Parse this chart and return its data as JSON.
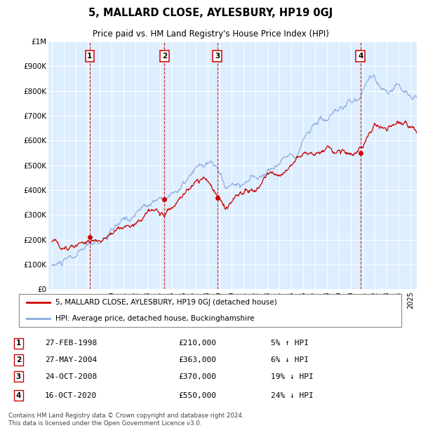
{
  "title": "5, MALLARD CLOSE, AYLESBURY, HP19 0GJ",
  "subtitle": "Price paid vs. HM Land Registry's House Price Index (HPI)",
  "ylabel_ticks": [
    "£0",
    "£100K",
    "£200K",
    "£300K",
    "£400K",
    "£500K",
    "£600K",
    "£700K",
    "£800K",
    "£900K",
    "£1M"
  ],
  "ytick_values": [
    0,
    100000,
    200000,
    300000,
    400000,
    500000,
    600000,
    700000,
    800000,
    900000,
    1000000
  ],
  "ylim": [
    0,
    1000000
  ],
  "xlim_start": 1994.7,
  "xlim_end": 2025.5,
  "background_color": "#ddeeff",
  "grid_color": "#ffffff",
  "sale_color": "#cc0000",
  "hpi_color": "#88aadd",
  "transactions": [
    {
      "num": 1,
      "date_x": 1998.15,
      "price": 210000
    },
    {
      "num": 2,
      "date_x": 2004.4,
      "price": 363000
    },
    {
      "num": 3,
      "date_x": 2008.81,
      "price": 370000
    },
    {
      "num": 4,
      "date_x": 2020.79,
      "price": 550000
    }
  ],
  "legend_sale_label": "5, MALLARD CLOSE, AYLESBURY, HP19 0GJ (detached house)",
  "legend_hpi_label": "HPI: Average price, detached house, Buckinghamshire",
  "footer": "Contains HM Land Registry data © Crown copyright and database right 2024.\nThis data is licensed under the Open Government Licence v3.0.",
  "table_rows": [
    [
      1,
      "27-FEB-1998",
      "£210,000",
      "5% ↑ HPI"
    ],
    [
      2,
      "27-MAY-2004",
      "£363,000",
      "6% ↓ HPI"
    ],
    [
      3,
      "24-OCT-2008",
      "£370,000",
      "19% ↓ HPI"
    ],
    [
      4,
      "16-OCT-2020",
      "£550,000",
      "24% ↓ HPI"
    ]
  ]
}
